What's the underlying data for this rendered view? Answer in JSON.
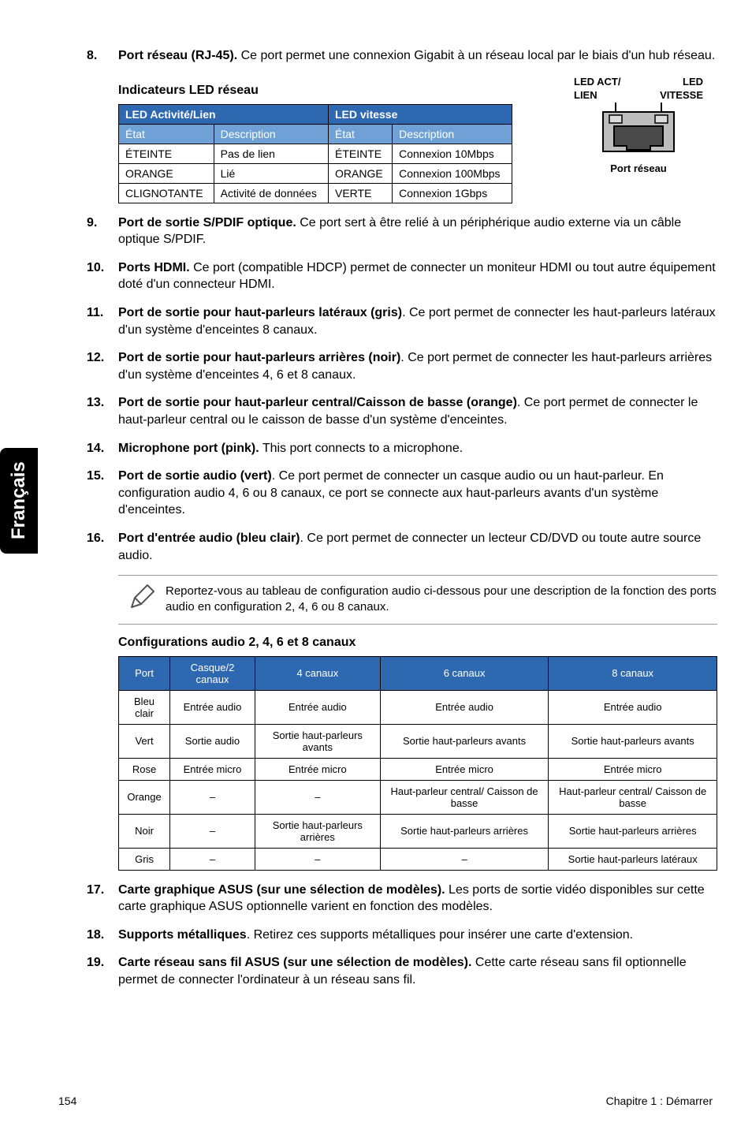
{
  "sideTab": "Français",
  "items": [
    {
      "num": "8.",
      "bold": "Port réseau (RJ-45).",
      "rest": " Ce port permet une connexion Gigabit à un réseau local par le biais d'un hub réseau."
    }
  ],
  "ledSectionTitle": "Indicateurs LED réseau",
  "portDiagram": {
    "topA": "LED ACT/",
    "topB": "LED",
    "labelA": "LIEN",
    "labelB": "VITESSE",
    "caption": "Port réseau"
  },
  "ledTable": {
    "group1": "LED Activité/Lien",
    "group2": "LED vitesse",
    "subheads": [
      "État",
      "Description",
      "État",
      "Description"
    ],
    "rows": [
      [
        "ÉTEINTE",
        "Pas de lien",
        "ÉTEINTE",
        "Connexion 10Mbps"
      ],
      [
        "ORANGE",
        "Lié",
        "ORANGE",
        "Connexion 100Mbps"
      ],
      [
        "CLIGNOTANTE",
        "Activité de données",
        "VERTE",
        "Connexion 1Gbps"
      ]
    ]
  },
  "items2": [
    {
      "num": "9.",
      "bold": "Port de sortie S/PDIF optique.",
      "rest": " Ce port sert à être relié à un périphérique audio externe via un câble optique S/PDIF."
    },
    {
      "num": "10.",
      "bold": "Ports HDMI.",
      "rest": " Ce port (compatible HDCP) permet de connecter un moniteur HDMI ou tout autre équipement doté d'un connecteur HDMI."
    },
    {
      "num": "11.",
      "bold": "Port de sortie pour haut-parleurs latéraux (gris)",
      "rest": ". Ce port permet de connecter les haut-parleurs latéraux d'un système d'enceintes 8 canaux."
    },
    {
      "num": "12.",
      "bold": "Port de sortie pour haut-parleurs arrières (noir)",
      "rest": ". Ce port permet de connecter les haut-parleurs arrières d'un système d'enceintes 4, 6 et 8 canaux."
    },
    {
      "num": "13.",
      "bold": "Port de sortie pour haut-parleur central/Caisson de basse (orange)",
      "rest": ". Ce port permet de connecter le haut-parleur central ou le caisson de basse d'un système d'enceintes."
    },
    {
      "num": "14.",
      "bold": "Microphone port (pink).",
      "rest": " This port connects to a microphone."
    },
    {
      "num": "15.",
      "bold": "Port de sortie audio (vert)",
      "rest": ". Ce port permet de connecter un casque audio ou un haut-parleur. En configuration audio 4, 6 ou 8 canaux, ce port se connecte aux haut-parleurs avants d'un système d'enceintes."
    },
    {
      "num": "16.",
      "bold": "Port d'entrée audio (bleu clair)",
      "rest": ". Ce port permet de connecter un lecteur CD/DVD ou toute autre source audio."
    }
  ],
  "noteText": "Reportez-vous au tableau de configuration audio ci-dessous pour une description de la fonction des ports audio en configuration 2, 4, 6 ou 8 canaux.",
  "audioTitle": "Configurations audio 2, 4, 6 et 8 canaux",
  "audioTable": {
    "headers": [
      "Port",
      "Casque/2 canaux",
      "4 canaux",
      "6 canaux",
      "8 canaux"
    ],
    "rows": [
      [
        "Bleu clair",
        "Entrée audio",
        "Entrée audio",
        "Entrée audio",
        "Entrée audio"
      ],
      [
        "Vert",
        "Sortie audio",
        "Sortie haut-parleurs avants",
        "Sortie haut-parleurs avants",
        "Sortie haut-parleurs avants"
      ],
      [
        "Rose",
        "Entrée micro",
        "Entrée micro",
        "Entrée micro",
        "Entrée micro"
      ],
      [
        "Orange",
        "–",
        "–",
        "Haut-parleur central/ Caisson de basse",
        "Haut-parleur central/ Caisson de basse"
      ],
      [
        "Noir",
        "–",
        "Sortie haut-parleurs arrières",
        "Sortie haut-parleurs arrières",
        "Sortie haut-parleurs arrières"
      ],
      [
        "Gris",
        "–",
        "–",
        "–",
        "Sortie haut-parleurs latéraux"
      ]
    ]
  },
  "items3": [
    {
      "num": "17.",
      "bold": "Carte graphique ASUS (sur une sélection de modèles).",
      "rest": " Les ports de sortie vidéo disponibles sur cette carte graphique ASUS optionnelle varient en fonction des modèles."
    },
    {
      "num": "18.",
      "bold": "Supports métalliques",
      "rest": ". Retirez ces supports métalliques pour insérer une carte d'extension."
    },
    {
      "num": "19.",
      "bold": "Carte réseau sans fil ASUS (sur une sélection de modèles).",
      "rest": " Cette carte réseau sans fil optionnelle permet de connecter l'ordinateur à un réseau sans fil."
    }
  ],
  "footer": {
    "page": "154",
    "chapter": "Chapitre 1 : Démarrer"
  }
}
